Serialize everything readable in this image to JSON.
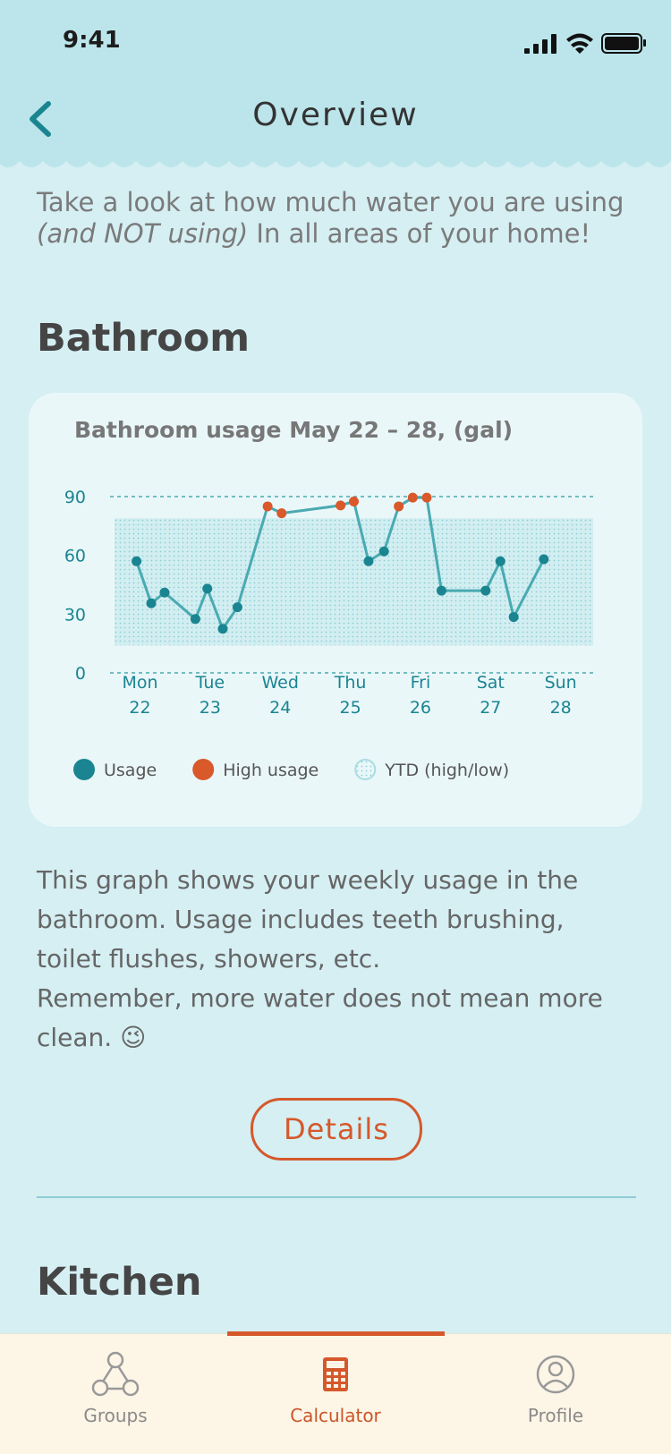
{
  "status_bar": {
    "time": "9:41"
  },
  "header": {
    "title": "Overview"
  },
  "intro": {
    "text_before": "Take a look at how much water you are using ",
    "text_italic": "(and NOT using)",
    "text_after": " In all areas of your home!"
  },
  "section_title": "Bathroom",
  "chart_data": {
    "type": "line",
    "title": "Bathroom usage May 22 – 28, (gal)",
    "x": [
      21.95,
      22.16,
      22.35,
      22.79,
      22.96,
      23.18,
      23.39,
      23.82,
      24.02,
      24.86,
      25.05,
      25.26,
      25.48,
      25.69,
      25.89,
      26.09,
      26.3,
      26.93,
      27.14,
      27.33,
      27.76
    ],
    "series": [
      {
        "name": "Usage",
        "color": "#1a8591",
        "values": [
          57,
          35.5,
          41,
          27.5,
          43,
          22.5,
          33.5,
          null,
          null,
          null,
          null,
          57,
          62,
          null,
          null,
          null,
          42,
          42,
          57,
          28.5,
          58
        ]
      },
      {
        "name": "High usage",
        "color": "#d9592b",
        "values": [
          null,
          null,
          null,
          null,
          null,
          null,
          null,
          85,
          81.5,
          85.5,
          87.5,
          null,
          null,
          85,
          89.5,
          89.5,
          null,
          null,
          null,
          null,
          null
        ]
      }
    ],
    "line_color": "#4aaab1",
    "band": {
      "name": "YTD (high/low)",
      "low": 14,
      "high": 79,
      "color": "#a6dde3"
    },
    "xlim": [
      21.7,
      28.4
    ],
    "xticks": [
      22,
      23,
      24,
      25,
      26,
      27,
      28
    ],
    "xtick_weekdays": [
      "Mon",
      "Tue",
      "Wed",
      "Thu",
      "Fri",
      "Sat",
      "Sun"
    ],
    "ylim": [
      0,
      90
    ],
    "yticks": [
      0,
      30,
      60,
      90
    ]
  },
  "description": [
    "This graph shows your weekly usage in the bathroom. Usage includes teeth brushing, toilet flushes, showers, etc.",
    "Remember, more water does not mean more clean. 😉"
  ],
  "button": "Details",
  "next_section_title": "Kitchen",
  "nav": {
    "items": [
      {
        "label": "Groups",
        "active": false
      },
      {
        "label": "Calculator",
        "active": true
      },
      {
        "label": "Profile",
        "active": false
      }
    ]
  }
}
